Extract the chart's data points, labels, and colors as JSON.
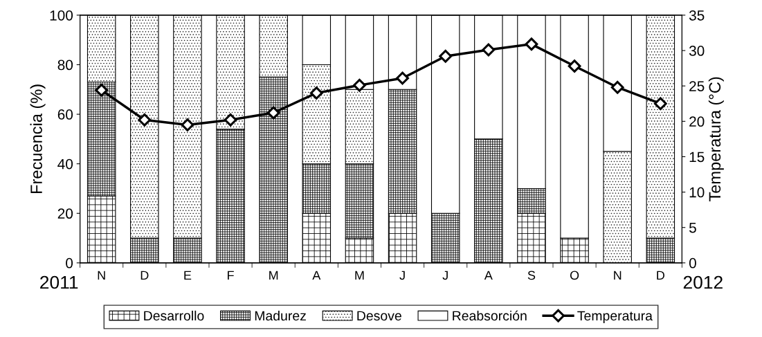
{
  "chart_data": {
    "type": "bar",
    "stacked": true,
    "ylabel": "Frecuencia (%)",
    "y2label": "Temperatura (°C)",
    "categories": [
      "N",
      "D",
      "E",
      "F",
      "M",
      "A",
      "M",
      "J",
      "J",
      "A",
      "S",
      "O",
      "N",
      "D"
    ],
    "ylim": [
      0,
      100
    ],
    "yticks": [
      0,
      20,
      40,
      60,
      80,
      100
    ],
    "y2lim": [
      0,
      35
    ],
    "y2ticks": [
      0,
      5,
      10,
      15,
      20,
      25,
      30,
      35
    ],
    "grid": false,
    "legend": "bottom",
    "marker": "diamond",
    "line_style": "solid",
    "annotations": [
      "2011",
      "2012"
    ],
    "series": [
      {
        "name": "Desarrollo",
        "color": "#000000",
        "values": [
          27,
          0,
          0,
          0,
          0,
          20,
          10,
          20,
          0,
          0,
          20,
          10,
          0,
          0
        ]
      },
      {
        "name": "Madurez",
        "color": "#000000",
        "values": [
          46,
          10,
          10,
          54,
          75,
          20,
          30,
          50,
          20,
          50,
          10,
          0,
          0,
          10
        ]
      },
      {
        "name": "Desove",
        "color": "#000000",
        "values": [
          27,
          90,
          90,
          46,
          25,
          40,
          30,
          0,
          0,
          0,
          0,
          0,
          45,
          90
        ]
      },
      {
        "name": "Reabsorción",
        "color": "#ffffff",
        "values": [
          0,
          0,
          0,
          0,
          0,
          20,
          30,
          30,
          80,
          50,
          70,
          90,
          55,
          0
        ]
      },
      {
        "name": "Temperatura",
        "type": "line",
        "axis": "y2",
        "color": "#000000",
        "values": [
          24.4,
          20.2,
          19.5,
          20.2,
          21.2,
          24.0,
          25.1,
          26.1,
          29.2,
          30.1,
          30.9,
          27.8,
          24.8,
          22.5
        ]
      }
    ]
  }
}
